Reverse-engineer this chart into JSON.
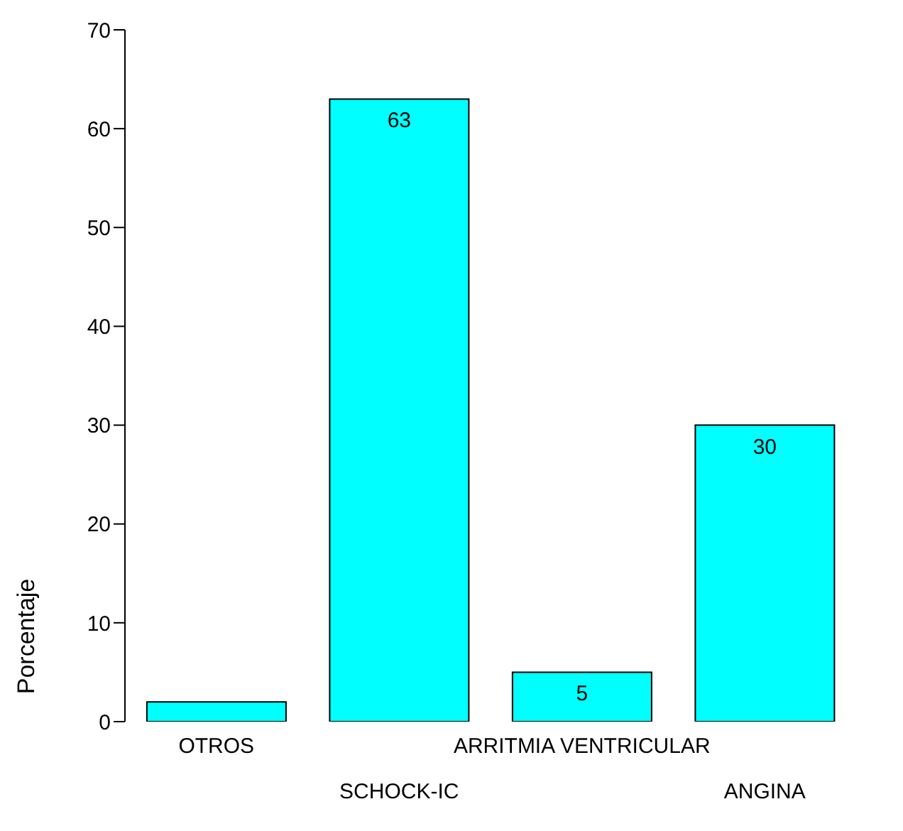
{
  "chart_data": {
    "type": "bar",
    "ylabel": "Porcentaje",
    "categories": [
      "OTROS",
      "SCHOCK-IC",
      "ARRITMIA VENTRICULAR",
      "ANGINA"
    ],
    "values": [
      2,
      63,
      5,
      30
    ],
    "value_labels": [
      null,
      "63",
      "5",
      "30"
    ],
    "color": "#00ffff",
    "ylim": [
      0,
      70
    ],
    "yticks": [
      0,
      10,
      20,
      30,
      40,
      50,
      60,
      70
    ],
    "grid": false,
    "legend": false
  }
}
